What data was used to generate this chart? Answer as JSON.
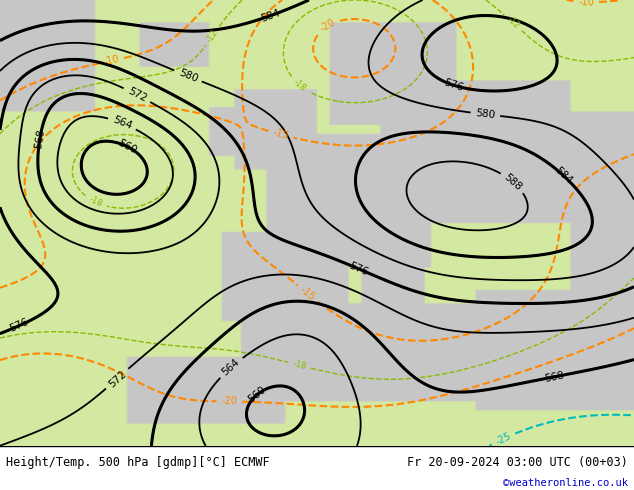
{
  "title_left": "Height/Temp. 500 hPa [gdmp][°C] ECMWF",
  "title_right": "Fr 20-09-2024 03:00 UTC (00+03)",
  "credit": "©weatheronline.co.uk",
  "bg_color": "#d0e8b0",
  "figsize": [
    6.34,
    4.9
  ],
  "dpi": 100,
  "bottom_bar_color": "#ffffff",
  "credit_color": "#0000cc",
  "temp_warm_color": "#ff8800",
  "temp_cold_color": "#00bbbb",
  "temp_vcold_color": "#cc0000",
  "temp_ylg_color": "#88bb00",
  "geo_color": "#000000",
  "land_gray": [
    0.78,
    0.78,
    0.78
  ],
  "bg_green": [
    0.83,
    0.91,
    0.63
  ]
}
